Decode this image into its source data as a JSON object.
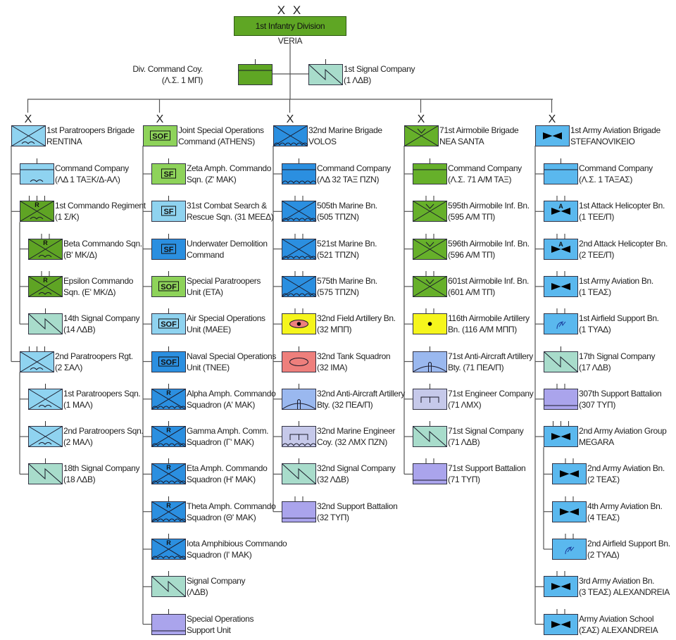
{
  "colors": {
    "paratrooper": "#8fd3f0",
    "commando": "#5fa424",
    "airmobile": "#66b02a",
    "marine": "#2b8fe0",
    "special_forces": "#8ed35a",
    "aviation": "#5ab8ee",
    "signal": "#a8dccb",
    "support": "#aaa4ec",
    "engineer": "#c6c9ea",
    "air_defense": "#9ab8ef",
    "artillery": "#f5f51c",
    "armor": "#ee7f7c",
    "division": "#5fa624",
    "line": "#555555"
  },
  "division": {
    "echelon": "X X",
    "name": "1st Infantry Division",
    "location": "VERIA"
  },
  "division_units": [
    {
      "lines": [
        "Div. Command Coy.",
        "(Λ.Σ. 1 ΜΠ)"
      ],
      "fill": "division",
      "icons": [
        "hq-line"
      ],
      "ticks": 1
    },
    {
      "lines": [
        "1st Signal Company",
        "(1 ΛΔΒ)"
      ],
      "fill": "signal",
      "icons": [
        "signal"
      ],
      "ticks": 1
    }
  ],
  "columns": [
    {
      "echelon": "X",
      "lines": [
        "1st Paratroopers Brigade",
        "RENTINA"
      ],
      "fill": "paratrooper",
      "icons": [
        "cross",
        "airborne"
      ],
      "ticks": 0,
      "children": [
        {
          "lines": [
            "Command Company",
            "(ΛΔ 1 ΤΑΞΚ/Δ-ΑΛ)"
          ],
          "fill": "paratrooper",
          "icons": [
            "hq-line",
            "airborne"
          ],
          "ticks": 1
        },
        {
          "lines": [
            "1st Commando Regiment",
            "(1 Σ/Κ)"
          ],
          "fill": "commando",
          "icons": [
            "cross",
            "airborne"
          ],
          "mark": "R",
          "ticks": 3,
          "children": [
            {
              "lines": [
                "Beta Commando Sqn.",
                "(Β' ΜΚ/Δ)"
              ],
              "fill": "commando",
              "icons": [
                "cross",
                "airborne"
              ],
              "mark": "R",
              "ticks": 2
            },
            {
              "lines": [
                "Epsilon Commando",
                "Sqn. (Ε' ΜΚ/Δ)"
              ],
              "fill": "commando",
              "icons": [
                "cross",
                "airborne"
              ],
              "mark": "R",
              "ticks": 2
            },
            {
              "lines": [
                "14th Signal Company",
                "(14 ΛΔΒ)"
              ],
              "fill": "signal",
              "icons": [
                "signal"
              ],
              "ticks": 1
            }
          ]
        },
        {
          "lines": [
            "2nd Paratroopers Rgt.",
            "(2 ΣΑΛ)"
          ],
          "fill": "paratrooper",
          "icons": [
            "cross",
            "airborne"
          ],
          "ticks": 3,
          "children": [
            {
              "lines": [
                "1st Paratroopers Sqn.",
                "(1 ΜΑΛ)"
              ],
              "fill": "paratrooper",
              "icons": [
                "cross",
                "airborne"
              ],
              "ticks": 1
            },
            {
              "lines": [
                "2nd Paratroopers Sqn.",
                "(2 ΜΑΛ)"
              ],
              "fill": "paratrooper",
              "icons": [
                "cross",
                "airborne"
              ],
              "ticks": 1
            },
            {
              "lines": [
                "18th Signal Company",
                "(18 ΛΔΒ)"
              ],
              "fill": "signal",
              "icons": [
                "signal"
              ],
              "ticks": 1
            }
          ]
        }
      ]
    },
    {
      "echelon": "X",
      "lines": [
        "Joint Special Operations",
        "Command (ATHENS)"
      ],
      "fill": "special_forces",
      "icons": [],
      "badge": "SOF",
      "ticks": 0,
      "children": [
        {
          "lines": [
            "Zeta Amph. Commando",
            "Sqn. (Ζ' ΜΑΚ)"
          ],
          "fill": "special_forces",
          "icons": [],
          "badge": "SF",
          "ticks": 1
        },
        {
          "lines": [
            "31st Combat Search &",
            "Rescue Sqn. (31 ΜΕΕΔ)"
          ],
          "fill": "paratrooper",
          "icons": [],
          "badge": "SF",
          "ticks": 1
        },
        {
          "lines": [
            "Underwater Demolition",
            "Command"
          ],
          "fill": "marine",
          "icons": [],
          "badge": "SF",
          "ticks": 1
        },
        {
          "lines": [
            "Special Paratroopers",
            "Unit (ΕΤΑ)"
          ],
          "fill": "special_forces",
          "icons": [],
          "badge": "SOF",
          "ticks": 1
        },
        {
          "lines": [
            "Air Special Operations",
            "Unit (ΜΑΕΕ)"
          ],
          "fill": "paratrooper",
          "icons": [],
          "badge": "SOF",
          "ticks": 1
        },
        {
          "lines": [
            "Naval Special Operations",
            "Unit (ΤΝΕΕ)"
          ],
          "fill": "marine",
          "icons": [],
          "badge": "SOF",
          "ticks": 1
        },
        {
          "lines": [
            "Alpha Amph. Commando",
            "Squadron (Α' ΜΑΚ)"
          ],
          "fill": "marine",
          "icons": [
            "cross",
            "waves"
          ],
          "mark": "R",
          "ticks": 1
        },
        {
          "lines": [
            "Gamma Amph. Comm.",
            "Squadron (Γ' ΜΑΚ)"
          ],
          "fill": "marine",
          "icons": [
            "cross",
            "waves"
          ],
          "mark": "R",
          "ticks": 1
        },
        {
          "lines": [
            "Eta Amph. Commando",
            "Squadron (Η' ΜΑΚ)"
          ],
          "fill": "marine",
          "icons": [
            "cross",
            "waves"
          ],
          "mark": "R",
          "ticks": 1
        },
        {
          "lines": [
            "Theta Amph. Commando",
            "Squadron (Θ' ΜΑΚ)"
          ],
          "fill": "marine",
          "icons": [
            "cross",
            "waves"
          ],
          "mark": "R",
          "ticks": 1
        },
        {
          "lines": [
            "Iota Amphibious Commando",
            "Squadron (Ι' ΜΑΚ)"
          ],
          "fill": "marine",
          "icons": [
            "cross",
            "waves"
          ],
          "mark": "R",
          "ticks": 1
        },
        {
          "lines": [
            "Signal Company",
            "(ΛΔΒ)"
          ],
          "fill": "signal",
          "icons": [
            "signal"
          ],
          "ticks": 1
        },
        {
          "lines": [
            "Special Operations",
            "Support Unit"
          ],
          "fill": "support",
          "icons": [
            "support-line"
          ],
          "ticks": 1
        }
      ]
    },
    {
      "echelon": "X",
      "lines": [
        "32nd Marine Brigade",
        "VOLOS"
      ],
      "fill": "marine",
      "icons": [
        "cross",
        "waves"
      ],
      "ticks": 0,
      "children": [
        {
          "lines": [
            "Command Company",
            "(ΛΔ 32 ΤΑΞ ΠΖΝ)"
          ],
          "fill": "marine",
          "icons": [
            "hq-line",
            "waves"
          ],
          "ticks": 1
        },
        {
          "lines": [
            "505th Marine Bn.",
            "(505 ΤΠΖΝ)"
          ],
          "fill": "marine",
          "icons": [
            "cross",
            "waves"
          ],
          "ticks": 2
        },
        {
          "lines": [
            "521st Marine Bn.",
            "(521 ΤΠΖΝ)"
          ],
          "fill": "marine",
          "icons": [
            "cross",
            "waves"
          ],
          "ticks": 2
        },
        {
          "lines": [
            "575th Marine Bn.",
            "(575 ΤΠΖΝ)"
          ],
          "fill": "marine",
          "icons": [
            "cross",
            "waves"
          ],
          "ticks": 2
        },
        {
          "lines": [
            "32nd Field Artillery Bn.",
            "(32 ΜΠΠ)"
          ],
          "fill": "artillery",
          "icons": [
            "ellipse",
            "dot"
          ],
          "ticks": 2
        },
        {
          "lines": [
            "32nd Tank Squadron",
            "(32 ΙΜΑ)"
          ],
          "fill": "armor",
          "icons": [
            "ellipse"
          ],
          "ticks": 1
        },
        {
          "lines": [
            "32nd Anti-Aircraft Artillery",
            "Bty. (32 ΠΕΑ/Π)"
          ],
          "fill": "air_defense",
          "icons": [
            "aa-dome"
          ],
          "ticks": 1
        },
        {
          "lines": [
            "32nd Marine Engineer",
            "Coy. (32 ΛΜΧ ΠΖΝ)"
          ],
          "fill": "engineer",
          "icons": [
            "engineer",
            "waves"
          ],
          "ticks": 1
        },
        {
          "lines": [
            "32nd Signal Company",
            "(32 ΛΔΒ)"
          ],
          "fill": "signal",
          "icons": [
            "signal"
          ],
          "ticks": 1
        },
        {
          "lines": [
            "32nd Support Battalion",
            "(32 ΤΥΠ)"
          ],
          "fill": "support",
          "icons": [
            "support-line"
          ],
          "ticks": 2
        }
      ]
    },
    {
      "echelon": "X",
      "lines": [
        "71st Airmobile Brigade",
        "NEA SANTA"
      ],
      "fill": "airmobile",
      "icons": [
        "cross",
        "airmobile-v"
      ],
      "ticks": 0,
      "children": [
        {
          "lines": [
            "Command Company",
            "(Λ.Σ. 71 Α/Μ ΤΑΞ)"
          ],
          "fill": "airmobile",
          "icons": [
            "hq-line"
          ],
          "ticks": 1
        },
        {
          "lines": [
            "595th Airmobile Inf. Bn.",
            "(595 Α/Μ ΤΠ)"
          ],
          "fill": "airmobile",
          "icons": [
            "cross",
            "airmobile-v"
          ],
          "ticks": 2
        },
        {
          "lines": [
            "596th Airmobile Inf. Bn.",
            "(596 Α/Μ ΤΠ)"
          ],
          "fill": "airmobile",
          "icons": [
            "cross",
            "airmobile-v"
          ],
          "ticks": 2
        },
        {
          "lines": [
            "601st Airmobile Inf. Bn.",
            "(601 Α/Μ ΤΠ)"
          ],
          "fill": "airmobile",
          "icons": [
            "cross",
            "airmobile-v"
          ],
          "ticks": 2
        },
        {
          "lines": [
            "116th Airmobile Artillery",
            "Bn. (116 Α/Μ ΜΠΠ)"
          ],
          "fill": "artillery",
          "icons": [
            "dot"
          ],
          "ticks": 2
        },
        {
          "lines": [
            "71st Anti-Aircraft Artillery",
            "Bty. (71 ΠΕΑ/Π)"
          ],
          "fill": "air_defense",
          "icons": [
            "aa-dome"
          ],
          "ticks": 1
        },
        {
          "lines": [
            "71st Engineer Company",
            "(71 ΛΜΧ)"
          ],
          "fill": "engineer",
          "icons": [
            "engineer"
          ],
          "ticks": 1
        },
        {
          "lines": [
            "71st Signal Company",
            "(71 ΛΔΒ)"
          ],
          "fill": "signal",
          "icons": [
            "signal"
          ],
          "ticks": 1
        },
        {
          "lines": [
            "71st Support Battalion",
            "(71 ΤΥΠ)"
          ],
          "fill": "support",
          "icons": [
            "support-line"
          ],
          "ticks": 2
        }
      ]
    },
    {
      "echelon": "X",
      "lines": [
        "1st Army Aviation Brigade",
        "STEFANOVIKEIO"
      ],
      "fill": "aviation",
      "icons": [
        "rotor"
      ],
      "ticks": 0,
      "children": [
        {
          "lines": [
            "Command Company",
            "(Λ.Σ. 1 ΤΑΞΑΣ)"
          ],
          "fill": "aviation",
          "icons": [
            "hq-line"
          ],
          "ticks": 1
        },
        {
          "lines": [
            "1st Attack Helicopter Bn.",
            "(1 ΤΕΕ/Π)"
          ],
          "fill": "aviation",
          "icons": [
            "rotor"
          ],
          "mark": "A",
          "ticks": 2
        },
        {
          "lines": [
            "2nd Attack Helicopter Bn.",
            "(2 ΤΕΕ/Π)"
          ],
          "fill": "aviation",
          "icons": [
            "rotor"
          ],
          "mark": "A",
          "ticks": 2
        },
        {
          "lines": [
            "1st Army Aviation Bn.",
            "(1 ΤΕΑΣ)"
          ],
          "fill": "aviation",
          "icons": [
            "rotor"
          ],
          "ticks": 2
        },
        {
          "lines": [
            "1st Airfield Support Bn.",
            "(1 ΤΥΑΔ)"
          ],
          "fill": "aviation",
          "icons": [
            "airfield"
          ],
          "ticks": 2
        },
        {
          "lines": [
            "17th Signal Company",
            "(17 ΛΔΒ)"
          ],
          "fill": "signal",
          "icons": [
            "signal"
          ],
          "ticks": 1
        },
        {
          "lines": [
            "307th Support Battalion",
            "(307 ΤΥΠ)"
          ],
          "fill": "support",
          "icons": [
            "support-line"
          ],
          "ticks": 2
        },
        {
          "lines": [
            "2nd Army Aviation Group",
            "MEGARA"
          ],
          "fill": "aviation",
          "icons": [
            "rotor"
          ],
          "ticks": 3,
          "children": [
            {
              "lines": [
                "2nd Army Aviation Bn.",
                "(2 ΤΕΑΣ)"
              ],
              "fill": "aviation",
              "icons": [
                "rotor"
              ],
              "ticks": 2
            },
            {
              "lines": [
                "4th Army Aviation Bn.",
                "(4 ΤΕΑΣ)"
              ],
              "fill": "aviation",
              "icons": [
                "rotor"
              ],
              "ticks": 2
            },
            {
              "lines": [
                "2nd Airfield Support Bn.",
                "(2 ΤΥΑΔ)"
              ],
              "fill": "aviation",
              "icons": [
                "airfield"
              ],
              "ticks": 2
            }
          ]
        },
        {
          "lines": [
            "3rd Army Aviation Bn.",
            "(3 ΤΕΑΣ) ALEXANDREIA"
          ],
          "fill": "aviation",
          "icons": [
            "rotor"
          ],
          "ticks": 2
        },
        {
          "lines": [
            "Army Aviation School",
            "(ΣΑΣ) ALEXANDREIA"
          ],
          "fill": "aviation",
          "icons": [
            "rotor"
          ],
          "ticks": 2
        }
      ]
    }
  ]
}
